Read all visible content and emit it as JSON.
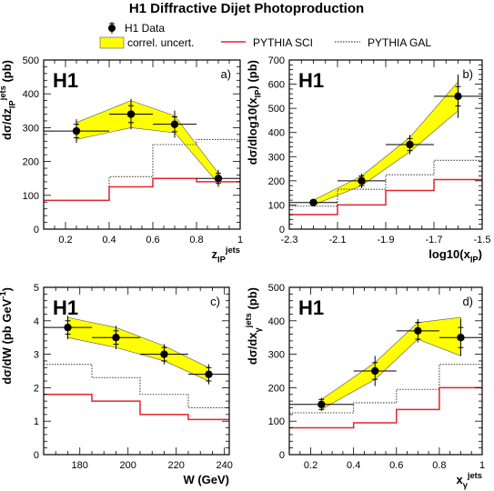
{
  "title": "H1 Diffractive Dijet Photoproduction",
  "legend": {
    "data_label": "H1 Data",
    "band_label": "correl. uncert.",
    "sci_label": "PYTHIA SCI",
    "gal_label": "PYTHIA GAL"
  },
  "colors": {
    "band": "#ffff00",
    "band_edge": "#555555",
    "sci": "#e3242b",
    "gal": "#444444",
    "data": "#000000"
  },
  "chart_data": [
    {
      "type": "line",
      "tag": "H1",
      "panel_label": "a)",
      "xlabel": "z_IP^jets",
      "ylabel": "dσ/dz_IP^jets (pb)",
      "xlim": [
        0.1,
        1.0
      ],
      "ylim": [
        0,
        500
      ],
      "xticks": [
        0.2,
        0.4,
        0.6,
        0.8,
        1.0
      ],
      "xtick_labels": [
        "0.2",
        "0.4",
        "0.6",
        "0.8",
        "1"
      ],
      "yticks": [
        0,
        100,
        200,
        300,
        400,
        500
      ],
      "ytick_labels": [
        "0",
        "100",
        "200",
        "300",
        "400",
        "500"
      ],
      "bin_edges": [
        0.1,
        0.4,
        0.6,
        0.8,
        1.0
      ],
      "data": {
        "x": [
          0.25,
          0.5,
          0.7,
          0.9
        ],
        "y": [
          290,
          340,
          310,
          150
        ],
        "xerr": [
          0.15,
          0.1,
          0.1,
          0.1
        ],
        "yerr_in": [
          20,
          25,
          22,
          15
        ],
        "yerr_out": [
          35,
          45,
          40,
          25
        ]
      },
      "band": {
        "x": [
          0.25,
          0.5,
          0.7,
          0.9
        ],
        "lo": [
          265,
          300,
          285,
          135
        ],
        "hi": [
          315,
          380,
          335,
          165
        ]
      },
      "pythia_sci": [
        85,
        125,
        150,
        140
      ],
      "pythia_gal": [
        85,
        155,
        250,
        265
      ]
    },
    {
      "type": "line",
      "tag": "H1",
      "panel_label": "b)",
      "xlabel": "log10(x_IP)",
      "ylabel": "dσ/dlog10(x_IP) (pb)",
      "xlim": [
        -2.3,
        -1.5
      ],
      "ylim": [
        0,
        700
      ],
      "xticks": [
        -2.3,
        -2.1,
        -1.9,
        -1.7,
        -1.5
      ],
      "xtick_labels": [
        "-2.3",
        "-2.1",
        "-1.9",
        "-1.7",
        "-1.5"
      ],
      "yticks": [
        0,
        100,
        200,
        300,
        400,
        500,
        600,
        700
      ],
      "ytick_labels": [
        "0",
        "100",
        "200",
        "300",
        "400",
        "500",
        "600",
        "700"
      ],
      "bin_edges": [
        -2.3,
        -2.1,
        -1.9,
        -1.7,
        -1.5
      ],
      "data": {
        "x": [
          -2.2,
          -2.0,
          -1.8,
          -1.6
        ],
        "y": [
          110,
          200,
          350,
          550
        ],
        "xerr": [
          0.1,
          0.1,
          0.1,
          0.1
        ],
        "yerr_in": [
          10,
          20,
          25,
          40
        ],
        "yerr_out": [
          15,
          30,
          40,
          90
        ]
      },
      "band": {
        "x": [
          -2.2,
          -2.0,
          -1.8,
          -1.6
        ],
        "lo": [
          100,
          180,
          320,
          490
        ],
        "hi": [
          120,
          220,
          380,
          610
        ]
      },
      "pythia_sci": [
        60,
        100,
        160,
        205
      ],
      "pythia_gal": [
        95,
        165,
        225,
        285
      ]
    },
    {
      "type": "line",
      "tag": "H1",
      "panel_label": "c)",
      "xlabel": "W (GeV)",
      "ylabel": "dσ/dW (pb GeV^-1)",
      "xlim": [
        165,
        242
      ],
      "ylim": [
        0,
        5
      ],
      "xticks": [
        180,
        200,
        220,
        240
      ],
      "xtick_labels": [
        "180",
        "200",
        "220",
        "240"
      ],
      "yticks": [
        0,
        1,
        2,
        3,
        4,
        5
      ],
      "ytick_labels": [
        "0",
        "1",
        "2",
        "3",
        "4",
        "5"
      ],
      "bin_edges": [
        165,
        185,
        205,
        225,
        242
      ],
      "data": {
        "x": [
          175,
          195,
          215,
          233.5
        ],
        "y": [
          3.8,
          3.5,
          3.0,
          2.4
        ],
        "xerr": [
          10,
          10,
          10,
          8.5
        ],
        "yerr_in": [
          0.2,
          0.2,
          0.2,
          0.2
        ],
        "yerr_out": [
          0.35,
          0.35,
          0.3,
          0.3
        ]
      },
      "band": {
        "x": [
          175,
          195,
          215,
          233.5
        ],
        "lo": [
          3.5,
          3.2,
          2.8,
          2.2
        ],
        "hi": [
          4.1,
          3.8,
          3.25,
          2.6
        ]
      },
      "pythia_sci": [
        1.8,
        1.6,
        1.2,
        1.05
      ],
      "pythia_gal": [
        2.7,
        2.3,
        1.8,
        1.4
      ]
    },
    {
      "type": "line",
      "tag": "H1",
      "panel_label": "d)",
      "xlabel": "x_γ^jets",
      "ylabel": "dσ/dx_γ^jets (pb)",
      "xlim": [
        0.1,
        1.0
      ],
      "ylim": [
        0,
        500
      ],
      "xticks": [
        0.2,
        0.4,
        0.6,
        0.8,
        1.0
      ],
      "xtick_labels": [
        "0.2",
        "0.4",
        "0.6",
        "0.8",
        "1"
      ],
      "yticks": [
        0,
        100,
        200,
        300,
        400,
        500
      ],
      "ytick_labels": [
        "0",
        "100",
        "200",
        "300",
        "400",
        "500"
      ],
      "bin_edges": [
        0.1,
        0.4,
        0.6,
        0.8,
        1.0
      ],
      "data": {
        "x": [
          0.25,
          0.5,
          0.7,
          0.9
        ],
        "y": [
          150,
          250,
          370,
          350
        ],
        "xerr": [
          0.15,
          0.1,
          0.1,
          0.1
        ],
        "yerr_in": [
          15,
          25,
          25,
          30
        ],
        "yerr_out": [
          20,
          45,
          35,
          55
        ]
      },
      "band": {
        "x": [
          0.25,
          0.5,
          0.7,
          0.9
        ],
        "lo": [
          135,
          225,
          345,
          295
        ],
        "hi": [
          165,
          275,
          395,
          410
        ]
      },
      "pythia_sci": [
        80,
        95,
        135,
        200
      ],
      "pythia_gal": [
        125,
        155,
        195,
        270
      ]
    }
  ]
}
